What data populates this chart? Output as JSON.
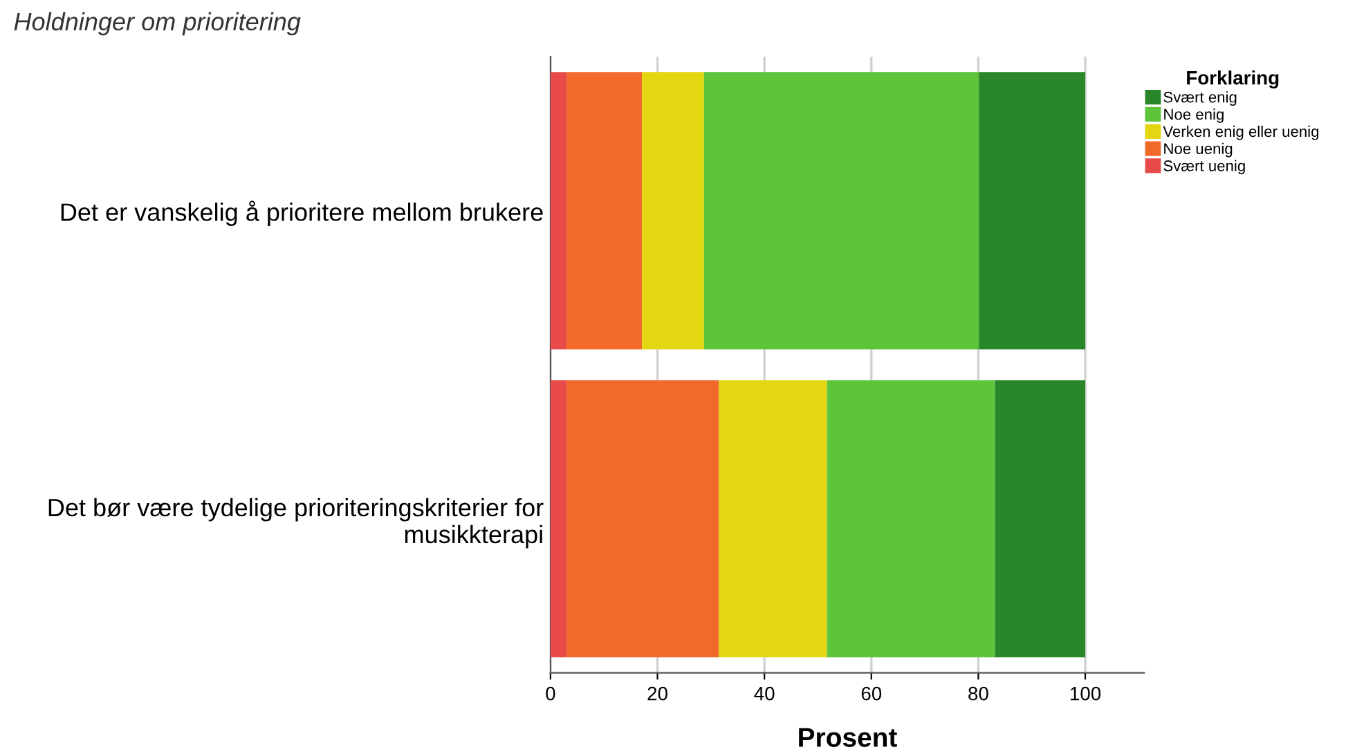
{
  "chart_data": {
    "type": "bar",
    "orientation": "horizontal",
    "stacked": true,
    "title": "Holdninger om prioritering",
    "xlabel": "Prosent",
    "legend_title": "Forklaring",
    "categories": [
      "Det er vanskelig å prioritere mellom brukere",
      "Det bør være tydelige prioriteringskriterier for\nmusikkterapi"
    ],
    "series": [
      {
        "name": "Svært uenig",
        "color": "#e84a4a",
        "values": [
          3.0,
          3.0
        ]
      },
      {
        "name": "Noe uenig",
        "color": "#f2692c",
        "values": [
          14.1,
          28.5
        ]
      },
      {
        "name": "Verken enig eller uenig",
        "color": "#e2d711",
        "values": [
          11.6,
          20.2
        ]
      },
      {
        "name": "Noe enig",
        "color": "#5ec43a",
        "values": [
          51.4,
          31.4
        ]
      },
      {
        "name": "Svært enig",
        "color": "#29872a",
        "values": [
          19.9,
          16.9
        ]
      }
    ],
    "xlim": [
      0,
      111
    ],
    "xticks": [
      0,
      20,
      40,
      60,
      80,
      100
    ],
    "grid": "x",
    "legend": "top right"
  }
}
